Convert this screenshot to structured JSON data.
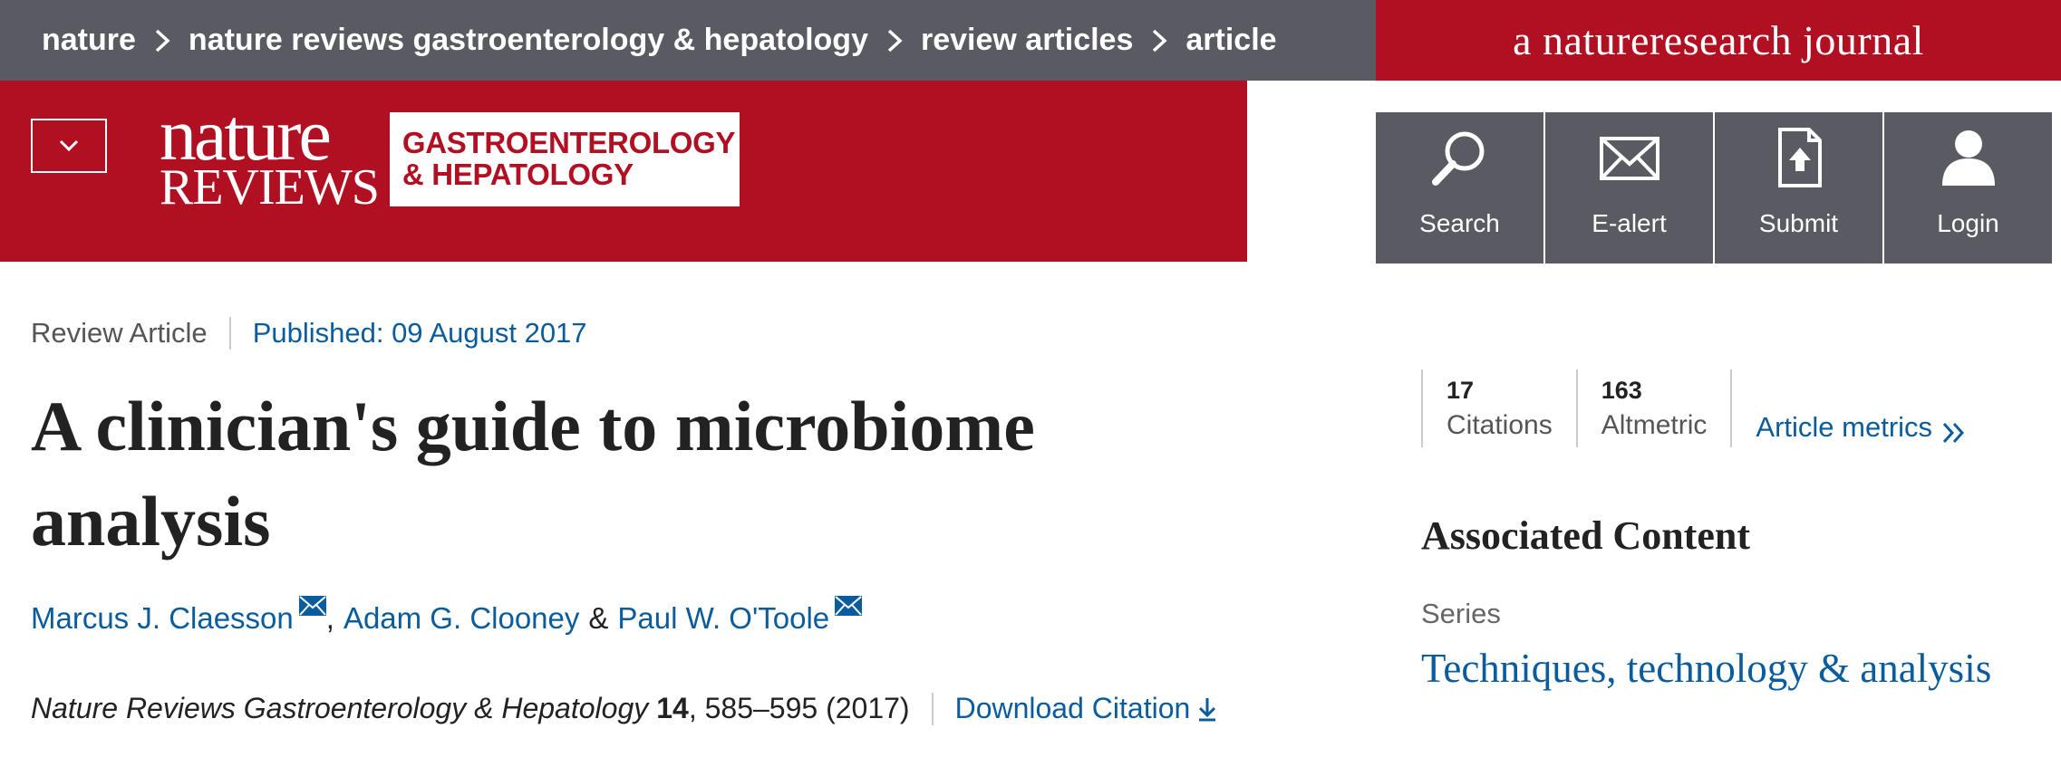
{
  "breadcrumb": {
    "items": [
      "nature",
      "nature reviews gastroenterology & hepatology",
      "review articles",
      "article"
    ]
  },
  "nr_badge": {
    "prefix": "a",
    "brand": "natureresearch",
    "suffix": "journal"
  },
  "logo": {
    "nature_word": "nature",
    "reviews_word": "REVIEWS",
    "journal_line1": "GASTROENTEROLOGY",
    "journal_line2": "& HEPATOLOGY"
  },
  "actions": [
    {
      "label": "Search",
      "icon": "search-icon"
    },
    {
      "label": "E-alert",
      "icon": "envelope-icon"
    },
    {
      "label": "Submit",
      "icon": "upload-document-icon"
    },
    {
      "label": "Login",
      "icon": "user-icon"
    }
  ],
  "article": {
    "type": "Review Article",
    "published": "Published: 09 August 2017",
    "title": "A clinician's guide to microbiome analysis",
    "authors": [
      {
        "name": "Marcus J. Claesson",
        "has_email": true
      },
      {
        "name": "Adam G. Clooney",
        "has_email": false
      },
      {
        "name": "Paul W. O'Toole",
        "has_email": true
      }
    ],
    "author_separator": ",",
    "author_ampersand": "&",
    "journal": "Nature Reviews Gastroenterology & Hepatology",
    "volume": "14",
    "pages_year": ", 585–595 (2017)",
    "download_label": "Download Citation"
  },
  "metrics": {
    "citations_count": "17",
    "citations_label": "Citations",
    "altmetric_count": "163",
    "altmetric_label": "Altmetric",
    "link_label": "Article metrics"
  },
  "associated": {
    "heading": "Associated Content",
    "series_label": "Series",
    "series_link": "Techniques, technology & analysis"
  },
  "colors": {
    "brand_red": "#b11023",
    "bar_gray": "#595a62",
    "link_blue": "#0a5c9c"
  }
}
